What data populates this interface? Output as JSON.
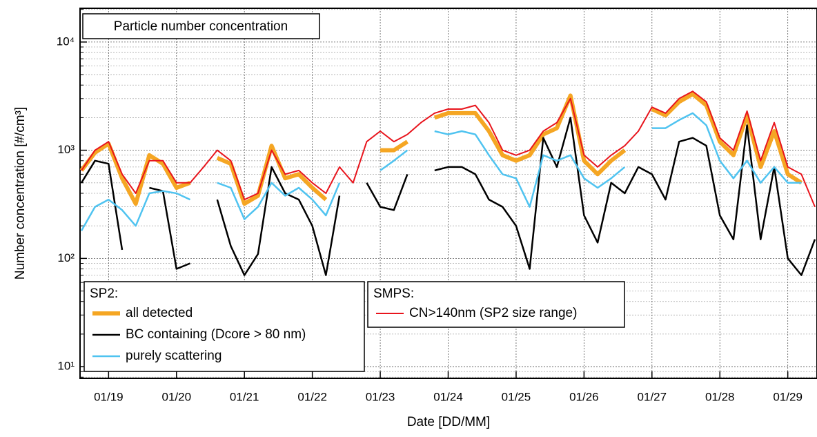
{
  "chart_data": {
    "type": "line",
    "title": "Particle number concentration",
    "xlabel": "Date [DD/MM]",
    "ylabel": "Number concentration [#/cm³]",
    "x": [
      18.6,
      18.8,
      19.0,
      19.2,
      19.4,
      19.6,
      19.8,
      20.0,
      20.2,
      20.4,
      20.6,
      20.8,
      21.0,
      21.2,
      21.4,
      21.6,
      21.8,
      22.0,
      22.2,
      22.4,
      22.6,
      22.8,
      23.0,
      23.2,
      23.4,
      23.6,
      23.8,
      24.0,
      24.2,
      24.4,
      24.6,
      24.8,
      25.0,
      25.2,
      25.4,
      25.6,
      25.8,
      26.0,
      26.2,
      26.4,
      26.6,
      26.8,
      27.0,
      27.2,
      27.4,
      27.6,
      27.8,
      28.0,
      28.2,
      28.4,
      28.6,
      28.8,
      29.0,
      29.2,
      29.4
    ],
    "series": [
      {
        "name": "all detected",
        "legend": "SP2:",
        "color": "#f5a623",
        "width": 6,
        "values": [
          650,
          950,
          1150,
          550,
          320,
          900,
          750,
          450,
          500,
          null,
          850,
          750,
          320,
          380,
          1100,
          550,
          600,
          450,
          350,
          null,
          null,
          null,
          1000,
          1000,
          1200,
          null,
          2000,
          2200,
          2200,
          2200,
          1500,
          900,
          800,
          900,
          1400,
          1600,
          3200,
          800,
          600,
          800,
          1000,
          null,
          2400,
          2100,
          2800,
          3300,
          2600,
          1200,
          900,
          2100,
          700,
          1500,
          600,
          500,
          null
        ]
      },
      {
        "name": "BC containing (Dcore > 80 nm)",
        "legend": "SP2:",
        "color": "#000000",
        "width": 2.5,
        "values": [
          500,
          800,
          750,
          120,
          null,
          450,
          420,
          80,
          90,
          null,
          350,
          130,
          70,
          110,
          700,
          400,
          350,
          200,
          70,
          380,
          null,
          500,
          300,
          280,
          600,
          null,
          650,
          700,
          700,
          600,
          350,
          300,
          200,
          80,
          1300,
          700,
          2000,
          250,
          140,
          500,
          400,
          700,
          600,
          350,
          1200,
          1300,
          1100,
          250,
          150,
          1700,
          150,
          700,
          100,
          70,
          150
        ]
      },
      {
        "name": "purely scattering",
        "legend": "SP2:",
        "color": "#4fc3f0",
        "width": 2.5,
        "values": [
          180,
          300,
          350,
          280,
          200,
          400,
          420,
          400,
          350,
          null,
          500,
          450,
          230,
          300,
          500,
          380,
          450,
          350,
          250,
          500,
          null,
          null,
          650,
          800,
          1000,
          null,
          1500,
          1400,
          1500,
          1400,
          900,
          600,
          550,
          300,
          900,
          800,
          900,
          550,
          450,
          550,
          700,
          null,
          1600,
          1600,
          1900,
          2200,
          1700,
          800,
          550,
          800,
          500,
          700,
          500,
          500,
          null
        ]
      },
      {
        "name": "CN>140nm  (SP2 size range)",
        "legend": "SMPS:",
        "color": "#e8141c",
        "width": 2,
        "values": [
          650,
          1000,
          1200,
          600,
          400,
          800,
          800,
          500,
          500,
          700,
          1000,
          800,
          350,
          400,
          1000,
          600,
          650,
          500,
          400,
          700,
          500,
          1200,
          1500,
          1200,
          1400,
          1800,
          2200,
          2400,
          2400,
          2600,
          1800,
          1000,
          900,
          1000,
          1500,
          1800,
          3000,
          900,
          700,
          900,
          1100,
          1500,
          2500,
          2200,
          3000,
          3500,
          2800,
          1300,
          1000,
          2300,
          800,
          1800,
          700,
          600,
          300
        ]
      }
    ],
    "xlim": [
      18.58,
      29.43
    ],
    "xticks": [
      {
        "value": 19,
        "label": "01/19"
      },
      {
        "value": 20,
        "label": "01/20"
      },
      {
        "value": 21,
        "label": "01/21"
      },
      {
        "value": 22,
        "label": "01/22"
      },
      {
        "value": 23,
        "label": "01/23"
      },
      {
        "value": 24,
        "label": "01/24"
      },
      {
        "value": 25,
        "label": "01/25"
      },
      {
        "value": 26,
        "label": "01/26"
      },
      {
        "value": 27,
        "label": "01/27"
      },
      {
        "value": 28,
        "label": "01/28"
      },
      {
        "value": 29,
        "label": "01/29"
      }
    ],
    "ylim": [
      7.8,
      20500
    ],
    "yticks": [
      {
        "value": 10,
        "label": "10¹"
      },
      {
        "value": 100,
        "label": "10²"
      },
      {
        "value": 1000,
        "label": "10³"
      },
      {
        "value": 10000,
        "label": "10⁴"
      }
    ],
    "yminorticks": [
      8,
      9,
      20,
      30,
      40,
      50,
      60,
      70,
      80,
      90,
      200,
      300,
      400,
      500,
      600,
      700,
      800,
      900,
      2000,
      3000,
      4000,
      5000,
      6000,
      7000,
      8000,
      9000,
      20000
    ],
    "log_y": true,
    "grid": true
  }
}
